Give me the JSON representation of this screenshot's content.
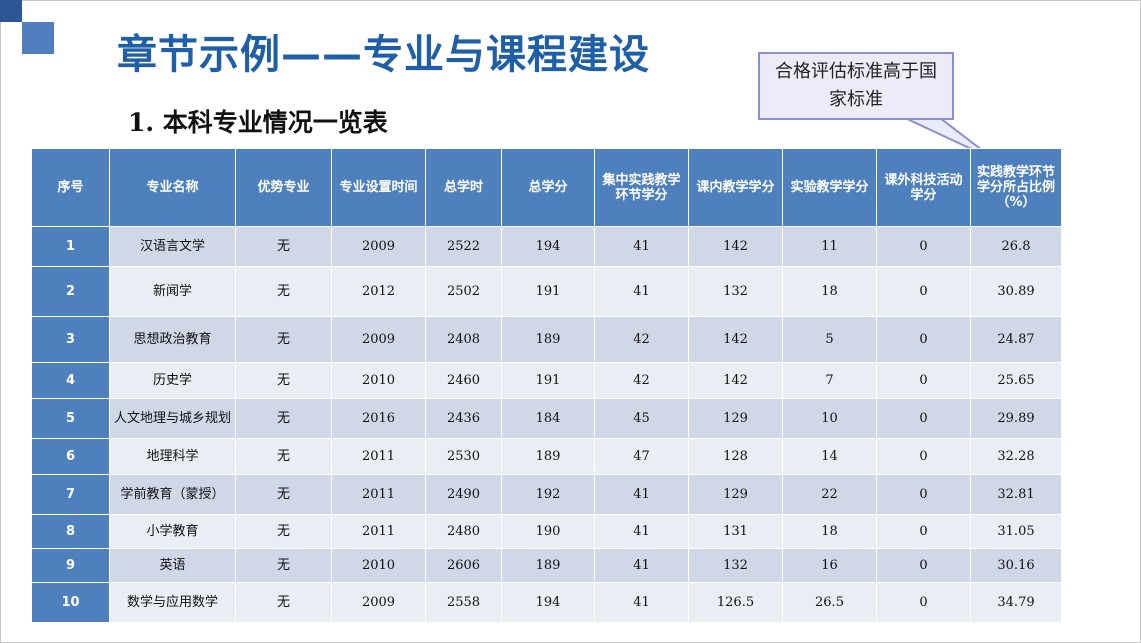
{
  "slide": {
    "title": "章节示例——专业与课程建设",
    "subtitle": "1. 本科专业情况一览表",
    "callout": "合格评估标准高于国家标准"
  },
  "table": {
    "headers": [
      "序号",
      "专业名称",
      "优势专业",
      "专业设置时间",
      "总学时",
      "总学分",
      "集中实践教学环节学分",
      "课内教学学分",
      "实验教学学分",
      "课外科技活动学分",
      "实践教学环节学分所占比例（%）"
    ],
    "rows": [
      [
        "1",
        "汉语言文学",
        "无",
        "2009",
        "2522",
        "194",
        "41",
        "142",
        "11",
        "0",
        "26.8"
      ],
      [
        "2",
        "新闻学",
        "无",
        "2012",
        "2502",
        "191",
        "41",
        "132",
        "18",
        "0",
        "30.89"
      ],
      [
        "3",
        "思想政治教育",
        "无",
        "2009",
        "2408",
        "189",
        "42",
        "142",
        "5",
        "0",
        "24.87"
      ],
      [
        "4",
        "历史学",
        "无",
        "2010",
        "2460",
        "191",
        "42",
        "142",
        "7",
        "0",
        "25.65"
      ],
      [
        "5",
        "人文地理与城乡规划",
        "无",
        "2016",
        "2436",
        "184",
        "45",
        "129",
        "10",
        "0",
        "29.89"
      ],
      [
        "6",
        "地理科学",
        "无",
        "2011",
        "2530",
        "189",
        "47",
        "128",
        "14",
        "0",
        "32.28"
      ],
      [
        "7",
        "学前教育（蒙授）",
        "无",
        "2011",
        "2490",
        "192",
        "41",
        "129",
        "22",
        "0",
        "32.81"
      ],
      [
        "8",
        "小学教育",
        "无",
        "2011",
        "2480",
        "190",
        "41",
        "131",
        "18",
        "0",
        "31.05"
      ],
      [
        "9",
        "英语",
        "无",
        "2010",
        "2606",
        "189",
        "41",
        "132",
        "16",
        "0",
        "30.16"
      ],
      [
        "10",
        "数学与应用数学",
        "无",
        "2009",
        "2558",
        "194",
        "41",
        "126.5",
        "26.5",
        "0",
        "34.79"
      ]
    ]
  },
  "colors": {
    "header_bg": "#4e80be",
    "row_dark": "#d0d8e8",
    "row_light": "#e9edf4",
    "title": "#1f5fa8"
  }
}
